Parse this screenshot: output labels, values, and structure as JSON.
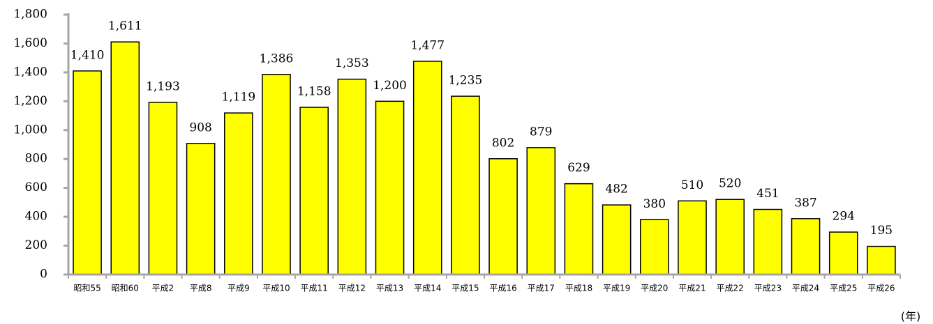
{
  "chart_data": {
    "type": "bar",
    "categories": [
      "昭和55",
      "昭和60",
      "平成2",
      "平成8",
      "平成9",
      "平成10",
      "平成11",
      "平成12",
      "平成13",
      "平成14",
      "平成15",
      "平成16",
      "平成17",
      "平成18",
      "平成19",
      "平成20",
      "平成21",
      "平成22",
      "平成23",
      "平成24",
      "平成25",
      "平成26"
    ],
    "values": [
      1410,
      1611,
      1193,
      908,
      1119,
      1386,
      1158,
      1353,
      1200,
      1477,
      1235,
      802,
      879,
      629,
      482,
      380,
      510,
      520,
      451,
      387,
      294,
      195
    ],
    "value_labels": [
      "1,410",
      "1,611",
      "1,193",
      "908",
      "1,119",
      "1,386",
      "1,158",
      "1,353",
      "1,200",
      "1,477",
      "1,235",
      "802",
      "879",
      "629",
      "482",
      "380",
      "510",
      "520",
      "451",
      "387",
      "294",
      "195"
    ],
    "color": "#ffff00",
    "x_label": "(年)",
    "ylim": [
      0,
      1800
    ],
    "yticks": [
      0,
      200,
      400,
      600,
      800,
      {
        "value": 1000,
        "label": "1,000"
      },
      {
        "value": 1200,
        "label": "1,200"
      },
      {
        "value": 1400,
        "label": "1,400"
      },
      {
        "value": 1600,
        "label": "1,600"
      },
      {
        "value": 1800,
        "label": "1,800"
      }
    ],
    "grid": false
  }
}
